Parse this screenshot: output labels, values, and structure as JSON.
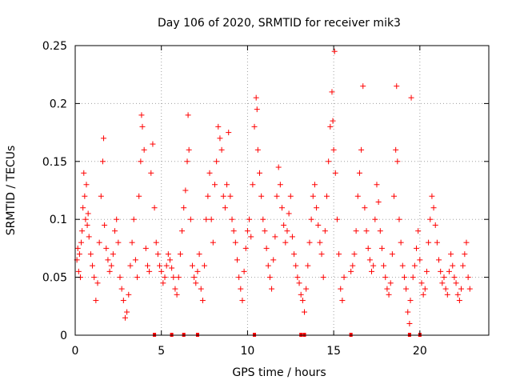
{
  "chart_data": {
    "type": "scatter",
    "title": "Day 106 of 2020, SRMTID for receiver mik3",
    "xlabel": "GPS time / hours",
    "ylabel": "SRMTID / TECUs",
    "xlim": [
      0,
      24
    ],
    "ylim": [
      0,
      0.25
    ],
    "grid": true,
    "marker": "+",
    "color": "#ff0000",
    "x_ticks": [
      {
        "value": 0,
        "label": "0"
      },
      {
        "value": 5,
        "label": "5"
      },
      {
        "value": 10,
        "label": "10"
      },
      {
        "value": 15,
        "label": "15"
      },
      {
        "value": 20,
        "label": "20"
      }
    ],
    "y_ticks": [
      {
        "value": 0,
        "label": "0"
      },
      {
        "value": 0.05,
        "label": "0.05"
      },
      {
        "value": 0.1,
        "label": "0.1"
      },
      {
        "value": 0.15,
        "label": "0.15"
      },
      {
        "value": 0.2,
        "label": "0.2"
      },
      {
        "value": 0.25,
        "label": "0.25"
      }
    ],
    "series": [
      {
        "name": "SRMTID",
        "points": [
          [
            0.1,
            0.065
          ],
          [
            0.15,
            0.075
          ],
          [
            0.2,
            0.055
          ],
          [
            0.25,
            0.07
          ],
          [
            0.3,
            0.05
          ],
          [
            0.35,
            0.08
          ],
          [
            0.4,
            0.09
          ],
          [
            0.45,
            0.11
          ],
          [
            0.5,
            0.14
          ],
          [
            0.55,
            0.12
          ],
          [
            0.6,
            0.1
          ],
          [
            0.65,
            0.13
          ],
          [
            0.7,
            0.095
          ],
          [
            0.75,
            0.105
          ],
          [
            0.8,
            0.085
          ],
          [
            0.9,
            0.07
          ],
          [
            1.0,
            0.06
          ],
          [
            1.1,
            0.05
          ],
          [
            1.2,
            0.03
          ],
          [
            1.3,
            0.045
          ],
          [
            1.4,
            0.08
          ],
          [
            1.5,
            0.12
          ],
          [
            1.6,
            0.15
          ],
          [
            1.65,
            0.17
          ],
          [
            1.7,
            0.095
          ],
          [
            1.8,
            0.075
          ],
          [
            1.9,
            0.065
          ],
          [
            2.0,
            0.055
          ],
          [
            2.1,
            0.06
          ],
          [
            2.2,
            0.07
          ],
          [
            2.3,
            0.09
          ],
          [
            2.4,
            0.1
          ],
          [
            2.5,
            0.08
          ],
          [
            2.6,
            0.05
          ],
          [
            2.7,
            0.04
          ],
          [
            2.8,
            0.03
          ],
          [
            2.9,
            0.015
          ],
          [
            3.0,
            0.02
          ],
          [
            3.1,
            0.035
          ],
          [
            3.2,
            0.06
          ],
          [
            3.3,
            0.08
          ],
          [
            3.4,
            0.1
          ],
          [
            3.5,
            0.065
          ],
          [
            3.6,
            0.05
          ],
          [
            3.7,
            0.12
          ],
          [
            3.8,
            0.15
          ],
          [
            3.85,
            0.19
          ],
          [
            3.9,
            0.18
          ],
          [
            4.0,
            0.16
          ],
          [
            4.1,
            0.075
          ],
          [
            4.2,
            0.06
          ],
          [
            4.3,
            0.055
          ],
          [
            4.4,
            0.14
          ],
          [
            4.5,
            0.165
          ],
          [
            4.6,
            0.11
          ],
          [
            4.7,
            0.08
          ],
          [
            4.8,
            0.07
          ],
          [
            4.9,
            0.06
          ],
          [
            5.0,
            0.055
          ],
          [
            5.1,
            0.045
          ],
          [
            5.2,
            0.05
          ],
          [
            5.3,
            0.06
          ],
          [
            5.4,
            0.07
          ],
          [
            5.5,
            0.065
          ],
          [
            5.6,
            0.058
          ],
          [
            5.7,
            0.05
          ],
          [
            5.8,
            0.04
          ],
          [
            5.9,
            0.035
          ],
          [
            6.0,
            0.05
          ],
          [
            6.1,
            0.07
          ],
          [
            6.2,
            0.09
          ],
          [
            6.3,
            0.11
          ],
          [
            6.4,
            0.125
          ],
          [
            6.5,
            0.15
          ],
          [
            6.55,
            0.19
          ],
          [
            6.6,
            0.16
          ],
          [
            6.7,
            0.1
          ],
          [
            6.8,
            0.06
          ],
          [
            6.9,
            0.05
          ],
          [
            7.0,
            0.045
          ],
          [
            7.1,
            0.055
          ],
          [
            7.2,
            0.07
          ],
          [
            7.3,
            0.04
          ],
          [
            7.4,
            0.03
          ],
          [
            7.5,
            0.06
          ],
          [
            7.6,
            0.1
          ],
          [
            7.7,
            0.12
          ],
          [
            7.8,
            0.14
          ],
          [
            7.9,
            0.1
          ],
          [
            8.0,
            0.08
          ],
          [
            8.1,
            0.13
          ],
          [
            8.2,
            0.15
          ],
          [
            8.3,
            0.18
          ],
          [
            8.4,
            0.17
          ],
          [
            8.5,
            0.16
          ],
          [
            8.6,
            0.12
          ],
          [
            8.7,
            0.11
          ],
          [
            8.8,
            0.13
          ],
          [
            8.9,
            0.175
          ],
          [
            9.0,
            0.12
          ],
          [
            9.1,
            0.1
          ],
          [
            9.2,
            0.09
          ],
          [
            9.3,
            0.08
          ],
          [
            9.4,
            0.065
          ],
          [
            9.5,
            0.05
          ],
          [
            9.6,
            0.04
          ],
          [
            9.7,
            0.03
          ],
          [
            9.8,
            0.055
          ],
          [
            9.9,
            0.075
          ],
          [
            10.0,
            0.09
          ],
          [
            10.1,
            0.1
          ],
          [
            10.2,
            0.085
          ],
          [
            10.3,
            0.13
          ],
          [
            10.4,
            0.18
          ],
          [
            10.5,
            0.205
          ],
          [
            10.55,
            0.195
          ],
          [
            10.6,
            0.16
          ],
          [
            10.7,
            0.14
          ],
          [
            10.8,
            0.12
          ],
          [
            10.9,
            0.1
          ],
          [
            11.0,
            0.09
          ],
          [
            11.1,
            0.075
          ],
          [
            11.2,
            0.06
          ],
          [
            11.3,
            0.05
          ],
          [
            11.4,
            0.04
          ],
          [
            11.5,
            0.065
          ],
          [
            11.6,
            0.085
          ],
          [
            11.7,
            0.12
          ],
          [
            11.8,
            0.145
          ],
          [
            11.9,
            0.13
          ],
          [
            12.0,
            0.11
          ],
          [
            12.1,
            0.095
          ],
          [
            12.2,
            0.08
          ],
          [
            12.3,
            0.09
          ],
          [
            12.4,
            0.105
          ],
          [
            12.5,
            0.12
          ],
          [
            12.6,
            0.085
          ],
          [
            12.7,
            0.07
          ],
          [
            12.8,
            0.06
          ],
          [
            12.9,
            0.05
          ],
          [
            13.0,
            0.045
          ],
          [
            13.1,
            0.035
          ],
          [
            13.2,
            0.03
          ],
          [
            13.3,
            0.02
          ],
          [
            13.4,
            0.04
          ],
          [
            13.5,
            0.06
          ],
          [
            13.6,
            0.08
          ],
          [
            13.7,
            0.1
          ],
          [
            13.8,
            0.12
          ],
          [
            13.9,
            0.13
          ],
          [
            14.0,
            0.11
          ],
          [
            14.1,
            0.095
          ],
          [
            14.2,
            0.08
          ],
          [
            14.3,
            0.07
          ],
          [
            14.4,
            0.05
          ],
          [
            14.5,
            0.09
          ],
          [
            14.6,
            0.12
          ],
          [
            14.7,
            0.15
          ],
          [
            14.8,
            0.18
          ],
          [
            14.9,
            0.21
          ],
          [
            14.95,
            0.185
          ],
          [
            15.0,
            0.16
          ],
          [
            15.05,
            0.245
          ],
          [
            15.1,
            0.14
          ],
          [
            15.2,
            0.1
          ],
          [
            15.3,
            0.07
          ],
          [
            15.4,
            0.04
          ],
          [
            15.5,
            0.03
          ],
          [
            15.6,
            0.05
          ],
          [
            16.0,
            0.055
          ],
          [
            16.1,
            0.06
          ],
          [
            16.2,
            0.07
          ],
          [
            16.3,
            0.09
          ],
          [
            16.4,
            0.12
          ],
          [
            16.5,
            0.14
          ],
          [
            16.6,
            0.16
          ],
          [
            16.7,
            0.215
          ],
          [
            16.8,
            0.11
          ],
          [
            16.9,
            0.09
          ],
          [
            17.0,
            0.075
          ],
          [
            17.1,
            0.065
          ],
          [
            17.2,
            0.055
          ],
          [
            17.3,
            0.06
          ],
          [
            17.4,
            0.1
          ],
          [
            17.5,
            0.13
          ],
          [
            17.6,
            0.115
          ],
          [
            17.7,
            0.09
          ],
          [
            17.8,
            0.075
          ],
          [
            17.9,
            0.06
          ],
          [
            18.0,
            0.05
          ],
          [
            18.1,
            0.04
          ],
          [
            18.2,
            0.035
          ],
          [
            18.3,
            0.045
          ],
          [
            18.4,
            0.07
          ],
          [
            18.5,
            0.12
          ],
          [
            18.6,
            0.16
          ],
          [
            18.65,
            0.215
          ],
          [
            18.7,
            0.15
          ],
          [
            18.8,
            0.1
          ],
          [
            18.9,
            0.08
          ],
          [
            19.0,
            0.06
          ],
          [
            19.1,
            0.05
          ],
          [
            19.2,
            0.04
          ],
          [
            19.3,
            0.02
          ],
          [
            19.4,
            0.01
          ],
          [
            19.45,
            0.03
          ],
          [
            19.5,
            0.205
          ],
          [
            19.6,
            0.05
          ],
          [
            19.7,
            0.06
          ],
          [
            19.8,
            0.075
          ],
          [
            19.9,
            0.09
          ],
          [
            20.0,
            0.065
          ],
          [
            20.1,
            0.045
          ],
          [
            20.2,
            0.035
          ],
          [
            20.3,
            0.04
          ],
          [
            20.4,
            0.055
          ],
          [
            20.5,
            0.08
          ],
          [
            20.6,
            0.1
          ],
          [
            20.7,
            0.12
          ],
          [
            20.8,
            0.11
          ],
          [
            20.9,
            0.095
          ],
          [
            21.0,
            0.08
          ],
          [
            21.1,
            0.065
          ],
          [
            21.2,
            0.055
          ],
          [
            21.3,
            0.045
          ],
          [
            21.4,
            0.05
          ],
          [
            21.5,
            0.04
          ],
          [
            21.6,
            0.035
          ],
          [
            21.7,
            0.055
          ],
          [
            21.8,
            0.07
          ],
          [
            21.9,
            0.06
          ],
          [
            22.0,
            0.05
          ],
          [
            22.1,
            0.045
          ],
          [
            22.2,
            0.035
          ],
          [
            22.3,
            0.03
          ],
          [
            22.4,
            0.04
          ],
          [
            22.5,
            0.06
          ],
          [
            22.6,
            0.07
          ],
          [
            22.7,
            0.08
          ],
          [
            22.8,
            0.05
          ],
          [
            22.9,
            0.04
          ]
        ]
      }
    ],
    "zero_markers_x": [
      4.6,
      5.6,
      6.3,
      7.1,
      10.4,
      13.1,
      13.3,
      16.0,
      19.4,
      20.0
    ]
  }
}
